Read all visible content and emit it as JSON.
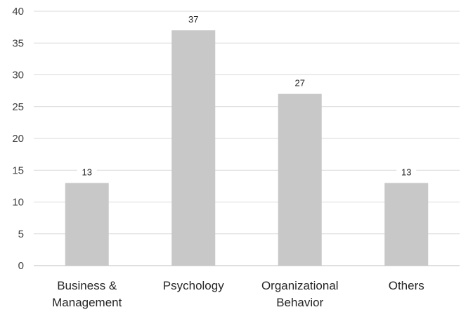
{
  "chart_data": {
    "type": "bar",
    "categories": [
      [
        "Business &",
        "Management"
      ],
      [
        "Psychology"
      ],
      [
        "Organizational",
        "Behavior"
      ],
      [
        "Others"
      ]
    ],
    "values": [
      13,
      37,
      27,
      13
    ],
    "ylim": [
      0,
      40
    ],
    "yticks": [
      0,
      5,
      10,
      15,
      20,
      25,
      30,
      35,
      40
    ],
    "grid": true,
    "legend": "none",
    "title": "",
    "xlabel": "",
    "ylabel": "",
    "colors": {
      "bar": "#c8c8c8",
      "grid": "#d9d9d9",
      "axis": "#bfbfbf"
    }
  }
}
